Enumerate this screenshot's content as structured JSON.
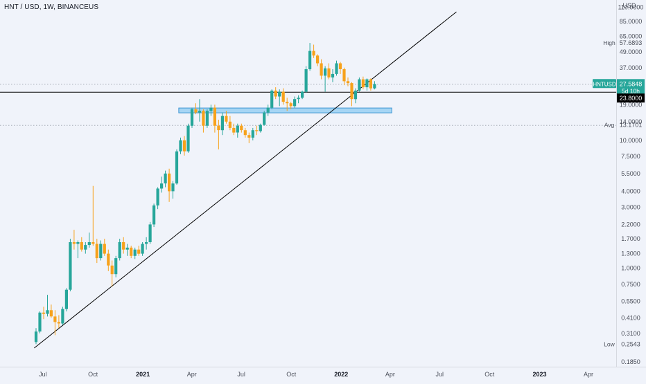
{
  "header": {
    "symbol_title": "HNT / USD, 1W, BINANCEUS"
  },
  "colors": {
    "up": "#26a69a",
    "down": "#f7a21b",
    "background": "#f0f3fa",
    "text": "#131722",
    "axis_text": "#4a4e59",
    "grid_dotted": "#9aa0aa",
    "price_tag": "#26a69a",
    "support_zone": "#8ecbf2",
    "support_zone_border": "#3d95d1",
    "black": "#000000"
  },
  "chart_data": {
    "type": "candlestick",
    "title": "HNT / USD, 1W, BINANCEUS",
    "y_axis": {
      "scale": "log",
      "unit_label": "USD",
      "ticks": [
        "110.0000",
        "85.0000",
        "65.0000",
        "49.0000",
        "37.0000",
        "19.0000",
        "14.0000",
        "10.0000",
        "7.5000",
        "5.5000",
        "4.0000",
        "3.0000",
        "2.2000",
        "1.7000",
        "1.3000",
        "1.0000",
        "0.7500",
        "0.5500",
        "0.4100",
        "0.3100",
        "0.1850"
      ],
      "range": [
        0.17,
        125
      ]
    },
    "x_axis": {
      "ticks": [
        "Jul",
        "Oct",
        "2021",
        "Apr",
        "Jul",
        "Oct",
        "2022",
        "Apr",
        "Jul",
        "Oct",
        "2023",
        "Apr"
      ],
      "bold_ticks": [
        "2021",
        "2022",
        "2023"
      ],
      "range": [
        "2020-04-13",
        "2023-05-22"
      ]
    },
    "markers": [
      {
        "label": "High",
        "value": "57.6893"
      },
      {
        "label": "Avg",
        "value": "13.1701"
      },
      {
        "label": "Low",
        "value": "0.2543"
      }
    ],
    "price_tag": {
      "label": "HNTUSD",
      "value": "27.5848",
      "countdown": "5d 10h"
    },
    "horizontal_level": {
      "value": "23.8000"
    },
    "support_zone": {
      "from": "2021-03-08",
      "to": "2022-04-04",
      "low": 16.4,
      "high": 17.9
    },
    "trendline": {
      "from": {
        "date": "2020-06-15",
        "price": 0.238
      },
      "to": {
        "date": "2022-08-01",
        "price": 101
      }
    },
    "candles": [
      {
        "t": "2020-06-15",
        "o": 0.265,
        "h": 0.34,
        "l": 0.255,
        "c": 0.32
      },
      {
        "t": "2020-06-22",
        "o": 0.32,
        "h": 0.46,
        "l": 0.31,
        "c": 0.45
      },
      {
        "t": "2020-06-29",
        "o": 0.45,
        "h": 0.5,
        "l": 0.4,
        "c": 0.44
      },
      {
        "t": "2020-07-06",
        "o": 0.44,
        "h": 0.62,
        "l": 0.42,
        "c": 0.47
      },
      {
        "t": "2020-07-13",
        "o": 0.47,
        "h": 0.52,
        "l": 0.41,
        "c": 0.42
      },
      {
        "t": "2020-07-20",
        "o": 0.42,
        "h": 0.47,
        "l": 0.3,
        "c": 0.38
      },
      {
        "t": "2020-07-27",
        "o": 0.38,
        "h": 0.43,
        "l": 0.34,
        "c": 0.37
      },
      {
        "t": "2020-08-03",
        "o": 0.37,
        "h": 0.5,
        "l": 0.36,
        "c": 0.48
      },
      {
        "t": "2020-08-10",
        "o": 0.48,
        "h": 0.7,
        "l": 0.46,
        "c": 0.68
      },
      {
        "t": "2020-08-17",
        "o": 0.68,
        "h": 1.7,
        "l": 0.66,
        "c": 1.6
      },
      {
        "t": "2020-08-24",
        "o": 1.6,
        "h": 2.0,
        "l": 1.4,
        "c": 1.55
      },
      {
        "t": "2020-08-31",
        "o": 1.55,
        "h": 1.65,
        "l": 1.2,
        "c": 1.6
      },
      {
        "t": "2020-09-07",
        "o": 1.6,
        "h": 1.75,
        "l": 1.35,
        "c": 1.4
      },
      {
        "t": "2020-09-14",
        "o": 1.4,
        "h": 1.6,
        "l": 1.3,
        "c": 1.52
      },
      {
        "t": "2020-09-21",
        "o": 1.52,
        "h": 1.9,
        "l": 1.45,
        "c": 1.6
      },
      {
        "t": "2020-09-28",
        "o": 1.6,
        "h": 4.4,
        "l": 1.5,
        "c": 1.55
      },
      {
        "t": "2020-10-05",
        "o": 1.55,
        "h": 1.7,
        "l": 1.1,
        "c": 1.2
      },
      {
        "t": "2020-10-12",
        "o": 1.2,
        "h": 1.65,
        "l": 1.15,
        "c": 1.55
      },
      {
        "t": "2020-10-19",
        "o": 1.55,
        "h": 1.7,
        "l": 1.25,
        "c": 1.3
      },
      {
        "t": "2020-10-26",
        "o": 1.3,
        "h": 1.4,
        "l": 0.95,
        "c": 1.05
      },
      {
        "t": "2020-11-02",
        "o": 1.05,
        "h": 1.15,
        "l": 0.72,
        "c": 0.9
      },
      {
        "t": "2020-11-09",
        "o": 0.9,
        "h": 1.25,
        "l": 0.85,
        "c": 1.2
      },
      {
        "t": "2020-11-16",
        "o": 1.2,
        "h": 1.7,
        "l": 1.15,
        "c": 1.6
      },
      {
        "t": "2020-11-23",
        "o": 1.6,
        "h": 1.75,
        "l": 1.3,
        "c": 1.4
      },
      {
        "t": "2020-11-30",
        "o": 1.4,
        "h": 1.55,
        "l": 1.25,
        "c": 1.45
      },
      {
        "t": "2020-12-07",
        "o": 1.45,
        "h": 1.5,
        "l": 1.2,
        "c": 1.25
      },
      {
        "t": "2020-12-14",
        "o": 1.25,
        "h": 1.45,
        "l": 1.18,
        "c": 1.4
      },
      {
        "t": "2020-12-21",
        "o": 1.4,
        "h": 1.5,
        "l": 1.25,
        "c": 1.3
      },
      {
        "t": "2020-12-28",
        "o": 1.3,
        "h": 1.6,
        "l": 1.25,
        "c": 1.55
      },
      {
        "t": "2021-01-04",
        "o": 1.55,
        "h": 1.75,
        "l": 1.4,
        "c": 1.6
      },
      {
        "t": "2021-01-11",
        "o": 1.6,
        "h": 2.3,
        "l": 1.55,
        "c": 2.2
      },
      {
        "t": "2021-01-18",
        "o": 2.2,
        "h": 3.2,
        "l": 2.1,
        "c": 3.1
      },
      {
        "t": "2021-01-25",
        "o": 3.1,
        "h": 4.3,
        "l": 2.9,
        "c": 4.2
      },
      {
        "t": "2021-02-01",
        "o": 4.2,
        "h": 5.2,
        "l": 3.9,
        "c": 4.6
      },
      {
        "t": "2021-02-08",
        "o": 4.6,
        "h": 5.8,
        "l": 4.3,
        "c": 5.5
      },
      {
        "t": "2021-02-15",
        "o": 5.5,
        "h": 6.0,
        "l": 3.3,
        "c": 4.0
      },
      {
        "t": "2021-02-22",
        "o": 4.0,
        "h": 4.8,
        "l": 3.5,
        "c": 4.6
      },
      {
        "t": "2021-03-01",
        "o": 4.6,
        "h": 8.5,
        "l": 4.5,
        "c": 8.2
      },
      {
        "t": "2021-03-08",
        "o": 8.2,
        "h": 10.5,
        "l": 7.8,
        "c": 10.0
      },
      {
        "t": "2021-03-15",
        "o": 10.0,
        "h": 10.8,
        "l": 7.6,
        "c": 8.2
      },
      {
        "t": "2021-03-22",
        "o": 8.2,
        "h": 13.5,
        "l": 8.0,
        "c": 13.0
      },
      {
        "t": "2021-03-29",
        "o": 13.0,
        "h": 18.0,
        "l": 12.5,
        "c": 17.5
      },
      {
        "t": "2021-04-05",
        "o": 17.5,
        "h": 19.5,
        "l": 16.0,
        "c": 16.5
      },
      {
        "t": "2021-04-12",
        "o": 16.5,
        "h": 21.0,
        "l": 14.0,
        "c": 17.0
      },
      {
        "t": "2021-04-19",
        "o": 17.0,
        "h": 17.5,
        "l": 11.5,
        "c": 13.0
      },
      {
        "t": "2021-04-26",
        "o": 13.0,
        "h": 17.5,
        "l": 12.5,
        "c": 17.0
      },
      {
        "t": "2021-05-03",
        "o": 17.0,
        "h": 19.0,
        "l": 15.5,
        "c": 18.0
      },
      {
        "t": "2021-05-10",
        "o": 18.0,
        "h": 19.0,
        "l": 11.5,
        "c": 13.0
      },
      {
        "t": "2021-05-17",
        "o": 13.0,
        "h": 14.5,
        "l": 8.5,
        "c": 12.0
      },
      {
        "t": "2021-05-24",
        "o": 12.0,
        "h": 16.5,
        "l": 11.0,
        "c": 15.5
      },
      {
        "t": "2021-05-31",
        "o": 15.5,
        "h": 17.0,
        "l": 13.5,
        "c": 14.0
      },
      {
        "t": "2021-06-07",
        "o": 14.0,
        "h": 15.5,
        "l": 12.0,
        "c": 12.5
      },
      {
        "t": "2021-06-14",
        "o": 12.5,
        "h": 13.5,
        "l": 11.0,
        "c": 11.5
      },
      {
        "t": "2021-06-21",
        "o": 11.5,
        "h": 13.5,
        "l": 10.5,
        "c": 13.0
      },
      {
        "t": "2021-06-28",
        "o": 13.0,
        "h": 13.5,
        "l": 11.5,
        "c": 12.0
      },
      {
        "t": "2021-07-05",
        "o": 12.0,
        "h": 12.5,
        "l": 10.5,
        "c": 11.0
      },
      {
        "t": "2021-07-12",
        "o": 11.0,
        "h": 11.5,
        "l": 9.5,
        "c": 10.5
      },
      {
        "t": "2021-07-19",
        "o": 10.5,
        "h": 12.5,
        "l": 10.0,
        "c": 12.0
      },
      {
        "t": "2021-07-26",
        "o": 12.0,
        "h": 13.0,
        "l": 11.0,
        "c": 11.8
      },
      {
        "t": "2021-08-02",
        "o": 11.8,
        "h": 13.5,
        "l": 11.5,
        "c": 13.2
      },
      {
        "t": "2021-08-09",
        "o": 13.2,
        "h": 17.0,
        "l": 13.0,
        "c": 16.5
      },
      {
        "t": "2021-08-16",
        "o": 16.5,
        "h": 19.0,
        "l": 15.5,
        "c": 18.0
      },
      {
        "t": "2021-08-23",
        "o": 18.0,
        "h": 25.0,
        "l": 17.5,
        "c": 24.5
      },
      {
        "t": "2021-08-30",
        "o": 24.5,
        "h": 26.0,
        "l": 21.0,
        "c": 22.0
      },
      {
        "t": "2021-09-06",
        "o": 22.0,
        "h": 25.0,
        "l": 18.5,
        "c": 24.0
      },
      {
        "t": "2021-09-13",
        "o": 24.0,
        "h": 25.5,
        "l": 19.0,
        "c": 20.0
      },
      {
        "t": "2021-09-20",
        "o": 20.0,
        "h": 21.5,
        "l": 17.0,
        "c": 19.5
      },
      {
        "t": "2021-09-27",
        "o": 19.5,
        "h": 20.0,
        "l": 17.5,
        "c": 18.5
      },
      {
        "t": "2021-10-04",
        "o": 18.5,
        "h": 22.0,
        "l": 18.0,
        "c": 21.0
      },
      {
        "t": "2021-10-11",
        "o": 21.0,
        "h": 22.5,
        "l": 19.5,
        "c": 21.5
      },
      {
        "t": "2021-10-18",
        "o": 21.5,
        "h": 24.5,
        "l": 21.0,
        "c": 24.0
      },
      {
        "t": "2021-10-25",
        "o": 24.0,
        "h": 38.0,
        "l": 23.5,
        "c": 36.0
      },
      {
        "t": "2021-11-01",
        "o": 36.0,
        "h": 57.7,
        "l": 35.0,
        "c": 50.0
      },
      {
        "t": "2021-11-08",
        "o": 50.0,
        "h": 56.0,
        "l": 44.0,
        "c": 46.0
      },
      {
        "t": "2021-11-15",
        "o": 46.0,
        "h": 47.0,
        "l": 38.0,
        "c": 40.0
      },
      {
        "t": "2021-11-22",
        "o": 40.0,
        "h": 43.0,
        "l": 30.0,
        "c": 32.0
      },
      {
        "t": "2021-11-29",
        "o": 32.0,
        "h": 38.0,
        "l": 24.0,
        "c": 36.5
      },
      {
        "t": "2021-12-06",
        "o": 36.5,
        "h": 40.0,
        "l": 30.0,
        "c": 31.0
      },
      {
        "t": "2021-12-13",
        "o": 31.0,
        "h": 36.0,
        "l": 28.5,
        "c": 33.0
      },
      {
        "t": "2021-12-20",
        "o": 33.0,
        "h": 42.0,
        "l": 32.0,
        "c": 40.0
      },
      {
        "t": "2021-12-27",
        "o": 40.0,
        "h": 41.0,
        "l": 33.0,
        "c": 36.0
      },
      {
        "t": "2022-01-03",
        "o": 36.0,
        "h": 37.0,
        "l": 27.0,
        "c": 29.0
      },
      {
        "t": "2022-01-10",
        "o": 29.0,
        "h": 31.0,
        "l": 26.5,
        "c": 28.0
      },
      {
        "t": "2022-01-17",
        "o": 28.0,
        "h": 28.5,
        "l": 18.5,
        "c": 21.0
      },
      {
        "t": "2022-01-24",
        "o": 21.0,
        "h": 25.5,
        "l": 19.5,
        "c": 24.5
      },
      {
        "t": "2022-01-31",
        "o": 24.5,
        "h": 31.0,
        "l": 24.0,
        "c": 30.0
      },
      {
        "t": "2022-02-07",
        "o": 30.0,
        "h": 31.5,
        "l": 25.0,
        "c": 26.0
      },
      {
        "t": "2022-02-14",
        "o": 26.0,
        "h": 30.5,
        "l": 24.5,
        "c": 30.0
      },
      {
        "t": "2022-02-21",
        "o": 30.0,
        "h": 30.5,
        "l": 24.5,
        "c": 25.5
      },
      {
        "t": "2022-02-28",
        "o": 25.5,
        "h": 29.0,
        "l": 25.0,
        "c": 27.58
      }
    ]
  }
}
